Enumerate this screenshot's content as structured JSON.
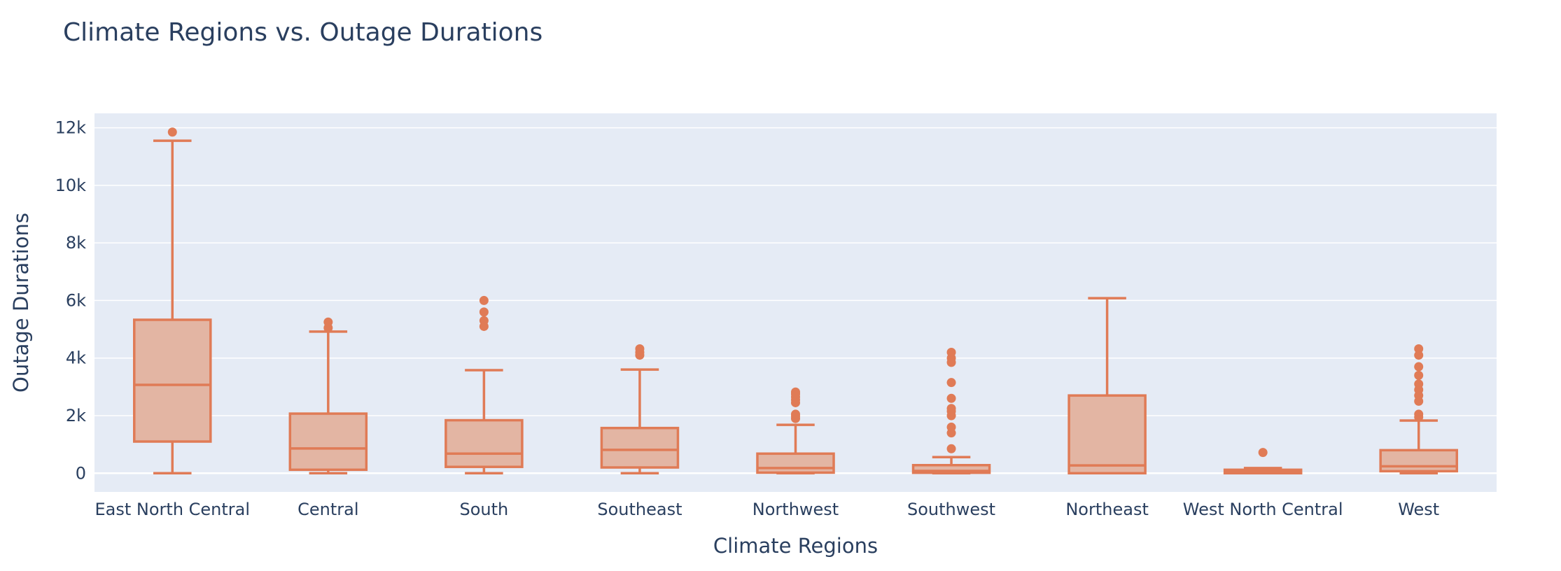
{
  "chart_data": {
    "type": "box",
    "title": "Climate Regions vs. Outage Durations",
    "xlabel": "Climate Regions",
    "ylabel": "Outage Durations",
    "ylim": [
      -650,
      12500
    ],
    "y_ticks": [
      0,
      2000,
      4000,
      6000,
      8000,
      10000,
      12000
    ],
    "y_tick_labels": [
      "0",
      "2k",
      "4k",
      "6k",
      "8k",
      "10k",
      "12k"
    ],
    "grid": true,
    "legend": "none",
    "colors": {
      "box_line": "#e07b56",
      "box_fill": "#e3b5a3",
      "plot_bg": "#e5ebf5",
      "grid": "#ffffff",
      "text": "#2a3f5f"
    },
    "categories": [
      "East North Central",
      "Central",
      "South",
      "Southeast",
      "Northwest",
      "Southwest",
      "Northeast",
      "West North Central",
      "West"
    ],
    "boxes": [
      {
        "category": "East North Central",
        "whisker_low": 0,
        "q1": 1100,
        "median": 3070,
        "q3": 5330,
        "whisker_high": 11550,
        "outliers": [
          11850
        ]
      },
      {
        "category": "Central",
        "whisker_low": 0,
        "q1": 120,
        "median": 860,
        "q3": 2070,
        "whisker_high": 4920,
        "outliers": [
          5050,
          5250
        ]
      },
      {
        "category": "South",
        "whisker_low": 0,
        "q1": 220,
        "median": 680,
        "q3": 1840,
        "whisker_high": 3580,
        "outliers": [
          5100,
          5300,
          5600,
          6000
        ]
      },
      {
        "category": "Southeast",
        "whisker_low": 0,
        "q1": 200,
        "median": 810,
        "q3": 1570,
        "whisker_high": 3600,
        "outliers": [
          4100,
          4200,
          4320
        ]
      },
      {
        "category": "Northwest",
        "whisker_low": 0,
        "q1": 20,
        "median": 180,
        "q3": 680,
        "whisker_high": 1680,
        "outliers": [
          1900,
          1980,
          2050,
          2450,
          2550,
          2650,
          2750,
          2820
        ]
      },
      {
        "category": "Southwest",
        "whisker_low": 0,
        "q1": 15,
        "median": 80,
        "q3": 280,
        "whisker_high": 560,
        "outliers": [
          850,
          1400,
          1600,
          2000,
          2150,
          2250,
          2600,
          3150,
          3850,
          4000,
          4200
        ]
      },
      {
        "category": "Northeast",
        "whisker_low": 0,
        "q1": 0,
        "median": 270,
        "q3": 2700,
        "whisker_high": 6080,
        "outliers": []
      },
      {
        "category": "West North Central",
        "whisker_low": 0,
        "q1": 0,
        "median": 60,
        "q3": 120,
        "whisker_high": 180,
        "outliers": [
          720
        ]
      },
      {
        "category": "West",
        "whisker_low": 0,
        "q1": 70,
        "median": 240,
        "q3": 800,
        "whisker_high": 1830,
        "outliers": [
          1950,
          2050,
          2500,
          2700,
          2900,
          3100,
          3400,
          3700,
          4100,
          4320
        ]
      }
    ]
  }
}
